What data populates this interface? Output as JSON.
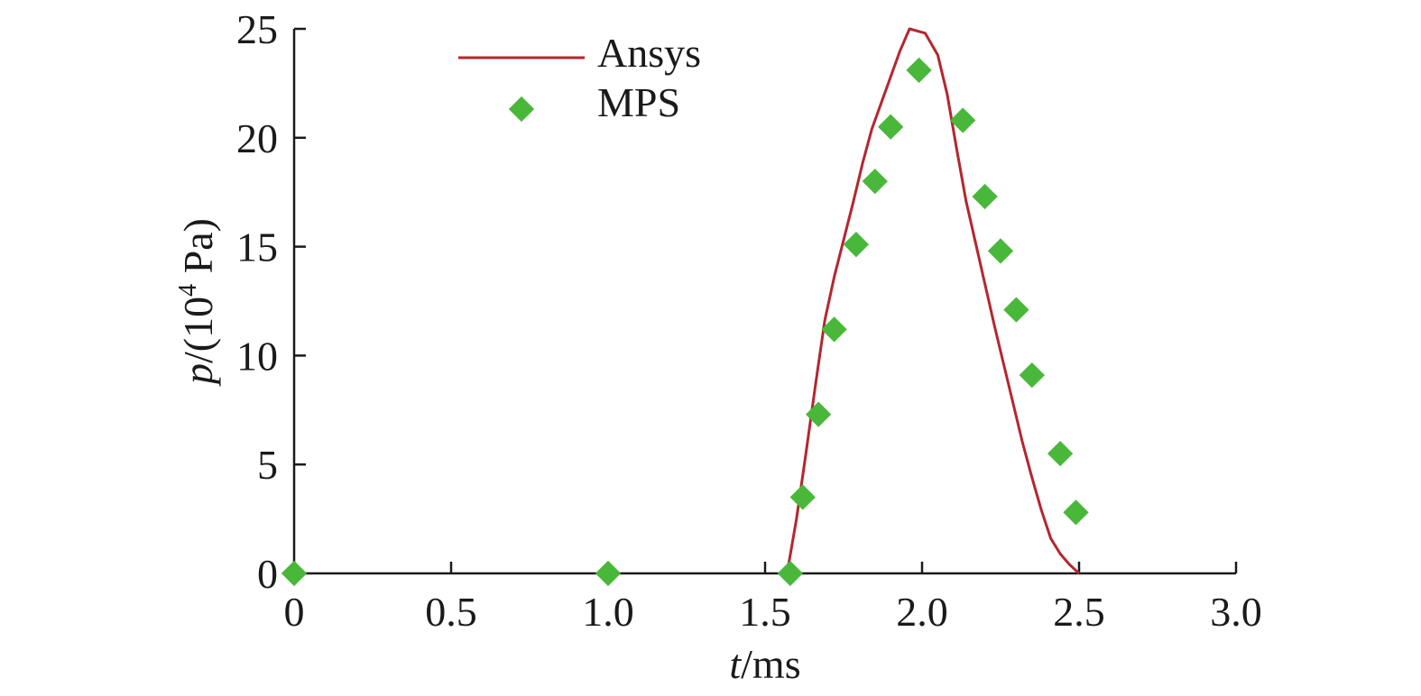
{
  "chart_data": {
    "type": "line",
    "xlabel": {
      "italic": "t",
      "rest": "/ms"
    },
    "ylabel": {
      "italic": "p",
      "prefix": "/(10",
      "sup": "4",
      "suffix": " Pa)"
    },
    "xlim": [
      0,
      3.0
    ],
    "ylim": [
      0,
      25
    ],
    "x_ticks": [
      "0",
      "0.5",
      "1.0",
      "1.5",
      "2.0",
      "2.5",
      "3.0"
    ],
    "y_ticks": [
      "0",
      "5",
      "10",
      "15",
      "20",
      "25"
    ],
    "grid": false,
    "legend_position": "top-left",
    "series": [
      {
        "name": "Ansys",
        "style": "line",
        "color": "#b5262e",
        "x": [
          1.57,
          1.6,
          1.63,
          1.66,
          1.69,
          1.72,
          1.75,
          1.78,
          1.81,
          1.84,
          1.87,
          1.9,
          1.93,
          1.96,
          2.01,
          2.05,
          2.08,
          2.11,
          2.14,
          2.17,
          2.2,
          2.23,
          2.26,
          2.29,
          2.32,
          2.35,
          2.38,
          2.41,
          2.44,
          2.47,
          2.5
        ],
        "y": [
          0,
          2.5,
          5.5,
          8.6,
          11.6,
          13.6,
          15.3,
          17.0,
          18.8,
          20.4,
          21.6,
          22.8,
          24.0,
          25.0,
          24.8,
          23.8,
          22.0,
          19.5,
          17.1,
          15.2,
          13.3,
          11.4,
          9.6,
          7.8,
          6.0,
          4.4,
          2.9,
          1.6,
          0.9,
          0.4,
          0
        ]
      },
      {
        "name": "MPS",
        "style": "marker",
        "marker": "diamond",
        "color": "#49b83a",
        "x": [
          0,
          1.0,
          1.58,
          1.62,
          1.67,
          1.72,
          1.79,
          1.85,
          1.9,
          1.99,
          2.13,
          2.2,
          2.25,
          2.3,
          2.35,
          2.44,
          2.49
        ],
        "y": [
          0,
          0,
          0,
          3.5,
          7.3,
          11.2,
          15.1,
          18.0,
          20.5,
          23.1,
          20.8,
          17.3,
          14.8,
          12.1,
          9.1,
          5.5,
          2.8
        ]
      }
    ]
  }
}
